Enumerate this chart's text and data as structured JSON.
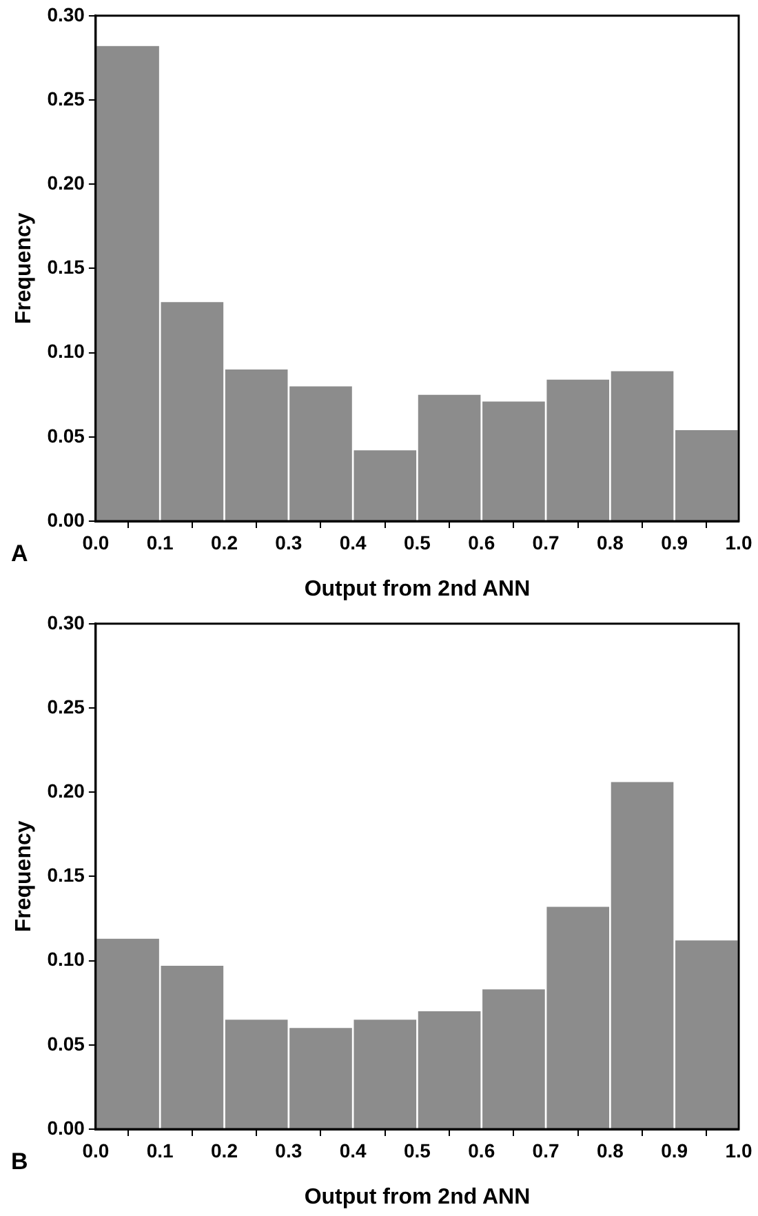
{
  "chart_data": [
    {
      "type": "histogram",
      "xlabel": "Output from 2nd ANN",
      "ylabel": "Frequency",
      "annotations": [
        "A"
      ],
      "color": "#8c8c8c",
      "grid": false,
      "legend": false,
      "bins": [
        0,
        0.1,
        0.2,
        0.3,
        0.4,
        0.5,
        0.6,
        0.7,
        0.8,
        0.9,
        1.0
      ],
      "values": [
        0.282,
        0.13,
        0.09,
        0.08,
        0.042,
        0.075,
        0.071,
        0.084,
        0.089,
        0.054
      ],
      "xlim": [
        0,
        1
      ],
      "ylim": [
        0,
        0.3
      ],
      "xticks": [
        {
          "value": 0,
          "label": "0.0"
        },
        {
          "value": 0.1,
          "label": "0.1"
        },
        {
          "value": 0.2,
          "label": "0.2"
        },
        {
          "value": 0.3,
          "label": "0.3"
        },
        {
          "value": 0.4,
          "label": "0.4"
        },
        {
          "value": 0.5,
          "label": "0.5"
        },
        {
          "value": 0.6,
          "label": "0.6"
        },
        {
          "value": 0.7,
          "label": "0.7"
        },
        {
          "value": 0.8,
          "label": "0.8"
        },
        {
          "value": 0.9,
          "label": "0.9"
        },
        {
          "value": 1,
          "label": "1.0"
        }
      ],
      "yticks": [
        {
          "value": 0,
          "label": "0.00"
        },
        {
          "value": 0.05,
          "label": "0.05"
        },
        {
          "value": 0.1,
          "label": "0.10"
        },
        {
          "value": 0.15,
          "label": "0.15"
        },
        {
          "value": 0.2,
          "label": "0.20"
        },
        {
          "value": 0.25,
          "label": "0.25"
        },
        {
          "value": 0.3,
          "label": "0.30"
        }
      ]
    },
    {
      "type": "histogram",
      "xlabel": "Output from 2nd ANN",
      "ylabel": "Frequency",
      "annotations": [
        "B"
      ],
      "color": "#8c8c8c",
      "grid": false,
      "legend": false,
      "bins": [
        0,
        0.1,
        0.2,
        0.3,
        0.4,
        0.5,
        0.6,
        0.7,
        0.8,
        0.9,
        1.0
      ],
      "values": [
        0.113,
        0.097,
        0.065,
        0.06,
        0.065,
        0.07,
        0.083,
        0.132,
        0.206,
        0.112
      ],
      "xlim": [
        0,
        1
      ],
      "ylim": [
        0,
        0.3
      ],
      "xticks": [
        {
          "value": 0,
          "label": "0.0"
        },
        {
          "value": 0.1,
          "label": "0.1"
        },
        {
          "value": 0.2,
          "label": "0.2"
        },
        {
          "value": 0.3,
          "label": "0.3"
        },
        {
          "value": 0.4,
          "label": "0.4"
        },
        {
          "value": 0.5,
          "label": "0.5"
        },
        {
          "value": 0.6,
          "label": "0.6"
        },
        {
          "value": 0.7,
          "label": "0.7"
        },
        {
          "value": 0.8,
          "label": "0.8"
        },
        {
          "value": 0.9,
          "label": "0.9"
        },
        {
          "value": 1,
          "label": "1.0"
        }
      ],
      "yticks": [
        {
          "value": 0,
          "label": "0.00"
        },
        {
          "value": 0.05,
          "label": "0.05"
        },
        {
          "value": 0.1,
          "label": "0.10"
        },
        {
          "value": 0.15,
          "label": "0.15"
        },
        {
          "value": 0.2,
          "label": "0.20"
        },
        {
          "value": 0.25,
          "label": "0.25"
        },
        {
          "value": 0.3,
          "label": "0.30"
        }
      ]
    }
  ]
}
